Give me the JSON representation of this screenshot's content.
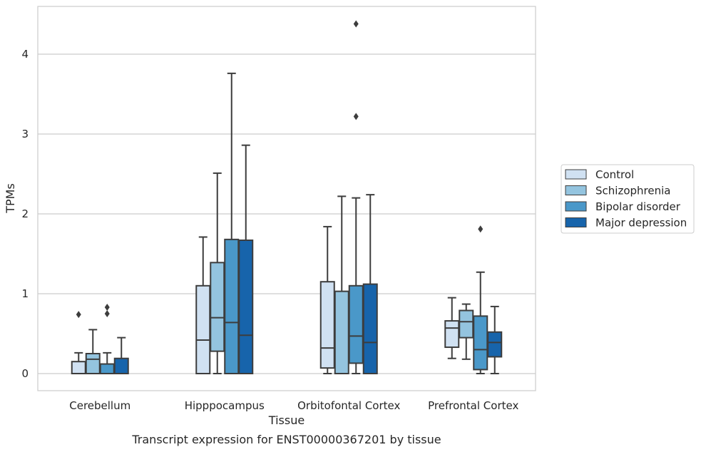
{
  "chart_data": {
    "type": "box",
    "caption": "Transcript expression for ENST00000367201 by tissue",
    "xlabel": "Tissue",
    "ylabel": "TPMs",
    "ylim": [
      -0.2,
      4.6
    ],
    "yticks": [
      0,
      1,
      2,
      3,
      4
    ],
    "grid": "horizontal",
    "legend_position": "right",
    "categories": [
      "Cerebellum",
      "Hipppocampus",
      "Orbitofontal Cortex",
      "Prefrontal Cortex"
    ],
    "series": [
      {
        "name": "Control",
        "color": "#d0e1f2",
        "boxes": [
          {
            "whislo": 0.0,
            "q1": 0.0,
            "med": 0.0,
            "q3": 0.15,
            "whishi": 0.26,
            "fliers": [
              0.74
            ]
          },
          {
            "whislo": 0.0,
            "q1": 0.0,
            "med": 0.42,
            "q3": 1.1,
            "whishi": 1.71,
            "fliers": []
          },
          {
            "whislo": 0.0,
            "q1": 0.07,
            "med": 0.32,
            "q3": 1.15,
            "whishi": 1.84,
            "fliers": []
          },
          {
            "whislo": 0.19,
            "q1": 0.33,
            "med": 0.57,
            "q3": 0.66,
            "whishi": 0.95,
            "fliers": []
          }
        ]
      },
      {
        "name": "Schizophrenia",
        "color": "#94c4df",
        "boxes": [
          {
            "whislo": 0.0,
            "q1": 0.0,
            "med": 0.18,
            "q3": 0.25,
            "whishi": 0.55,
            "fliers": []
          },
          {
            "whislo": 0.0,
            "q1": 0.28,
            "med": 0.7,
            "q3": 1.39,
            "whishi": 2.51,
            "fliers": []
          },
          {
            "whislo": 0.0,
            "q1": 0.0,
            "med": 0.0,
            "q3": 1.03,
            "whishi": 2.22,
            "fliers": []
          },
          {
            "whislo": 0.18,
            "q1": 0.45,
            "med": 0.65,
            "q3": 0.79,
            "whishi": 0.87,
            "fliers": []
          }
        ]
      },
      {
        "name": "Bipolar disorder",
        "color": "#4a98c9",
        "boxes": [
          {
            "whislo": 0.0,
            "q1": 0.0,
            "med": 0.0,
            "q3": 0.12,
            "whishi": 0.26,
            "fliers": [
              0.75,
              0.83
            ]
          },
          {
            "whislo": 0.0,
            "q1": 0.0,
            "med": 0.64,
            "q3": 1.68,
            "whishi": 3.76,
            "fliers": []
          },
          {
            "whislo": 0.0,
            "q1": 0.13,
            "med": 0.47,
            "q3": 1.1,
            "whishi": 2.2,
            "fliers": [
              3.22,
              4.38
            ]
          },
          {
            "whislo": 0.0,
            "q1": 0.05,
            "med": 0.3,
            "q3": 0.72,
            "whishi": 1.27,
            "fliers": [
              1.81
            ]
          }
        ]
      },
      {
        "name": "Major depression",
        "color": "#1764ab",
        "boxes": [
          {
            "whislo": 0.0,
            "q1": 0.0,
            "med": 0.0,
            "q3": 0.19,
            "whishi": 0.45,
            "fliers": []
          },
          {
            "whislo": 0.0,
            "q1": 0.0,
            "med": 0.48,
            "q3": 1.67,
            "whishi": 2.86,
            "fliers": []
          },
          {
            "whislo": 0.0,
            "q1": 0.0,
            "med": 0.39,
            "q3": 1.12,
            "whishi": 2.24,
            "fliers": []
          },
          {
            "whislo": 0.0,
            "q1": 0.21,
            "med": 0.39,
            "q3": 0.52,
            "whishi": 0.84,
            "fliers": []
          }
        ]
      }
    ]
  }
}
